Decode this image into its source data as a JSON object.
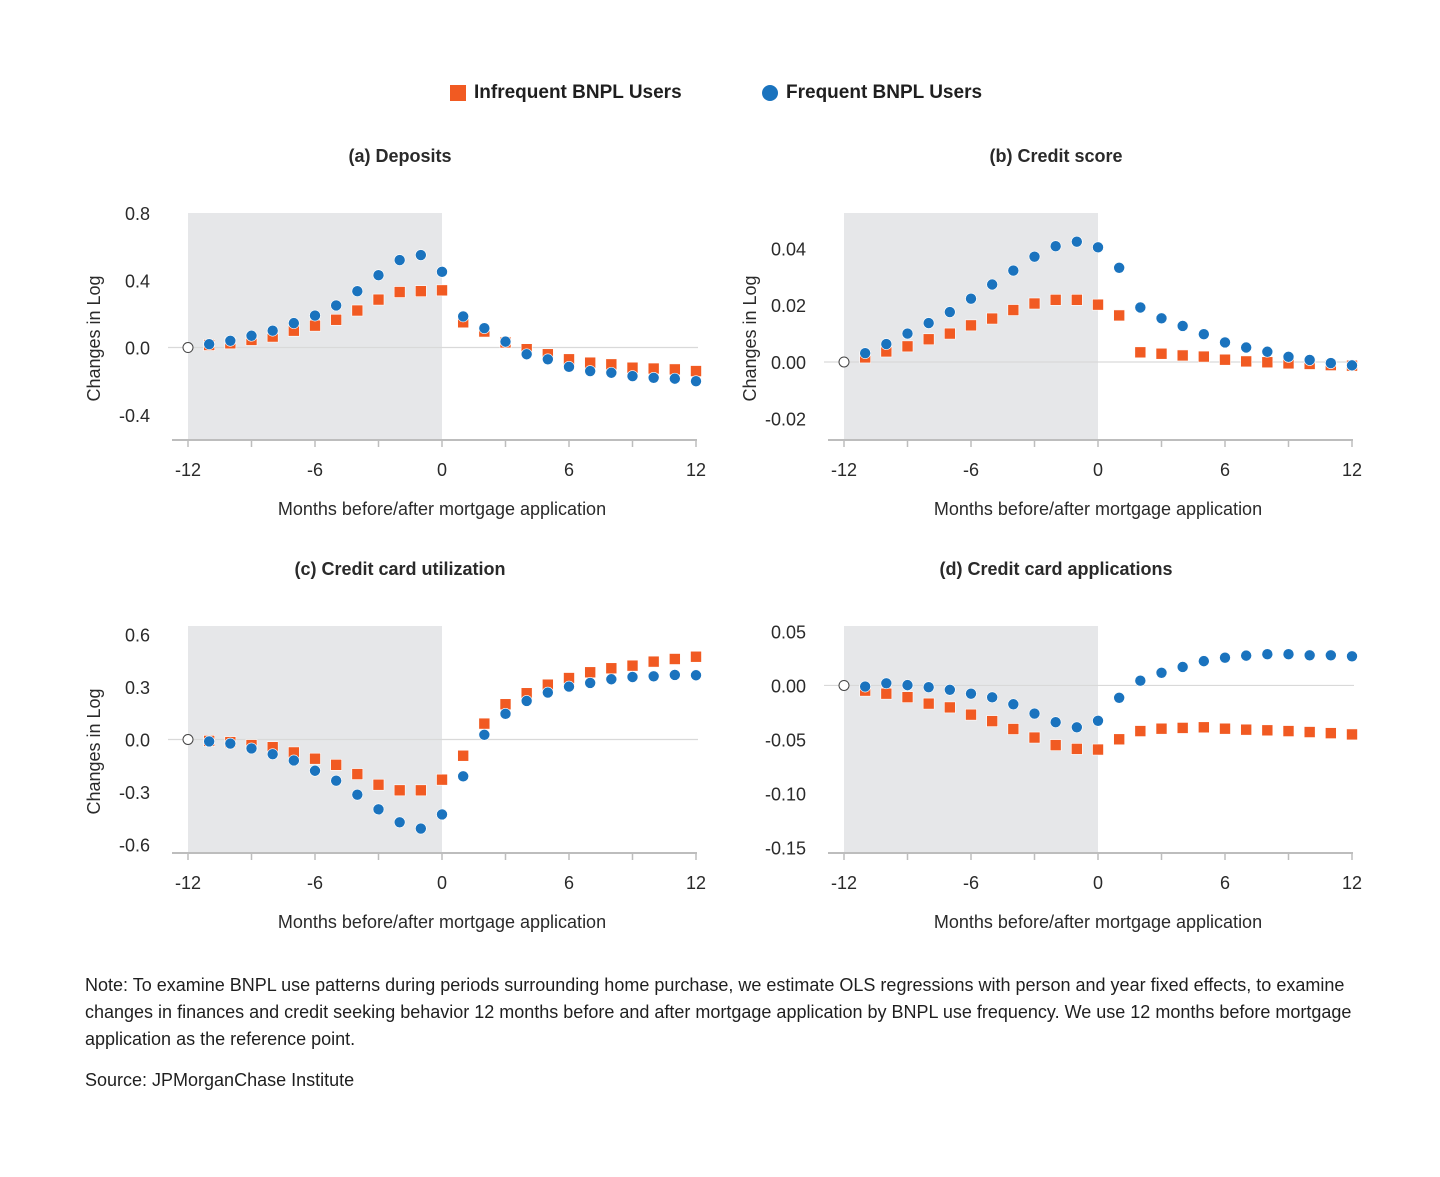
{
  "legend": {
    "items": [
      {
        "label": "Infrequent BNPL Users",
        "marker": "square",
        "color": "#F15A22"
      },
      {
        "label": "Frequent BNPL Users",
        "marker": "circle",
        "color": "#1A73BE"
      }
    ]
  },
  "colors": {
    "infrequent": "#F15A22",
    "frequent": "#1A73BE",
    "shading": "#E6E7E9",
    "axis": "#BDBDBD",
    "zero_line": "#D9D9D9",
    "text": "#222222"
  },
  "chart_data": [
    {
      "type": "scatter",
      "title": "(a) Deposits",
      "xlabel": "Months before/after mortgage application",
      "ylabel": "Changes in Log",
      "xlim": [
        -12,
        12
      ],
      "ylim": [
        -0.55,
        0.8
      ],
      "xticks": [
        -12,
        -9,
        -6,
        -3,
        0,
        3,
        6,
        9,
        12
      ],
      "xtick_labels": [
        "-12",
        "",
        "-6",
        "",
        "0",
        "",
        "6",
        "",
        "12"
      ],
      "yticks": [
        0.8,
        0.4,
        0.0,
        -0.4
      ],
      "ytick_labels": [
        "0.8",
        "0.4",
        "0.0",
        "-0.4"
      ],
      "shaded_region_x": [
        -12,
        0
      ],
      "reference_point": {
        "x": -12,
        "y": 0
      },
      "x": [
        -11,
        -10,
        -9,
        -8,
        -7,
        -6,
        -5,
        -4,
        -3,
        -2,
        -1,
        0,
        1,
        2,
        3,
        4,
        5,
        6,
        7,
        8,
        9,
        10,
        11,
        12
      ],
      "series": [
        {
          "name": "Infrequent BNPL Users",
          "values": [
            0.015,
            0.025,
            0.045,
            0.065,
            0.1,
            0.13,
            0.165,
            0.22,
            0.285,
            0.33,
            0.335,
            0.34,
            0.15,
            0.095,
            0.03,
            -0.01,
            -0.04,
            -0.07,
            -0.09,
            -0.1,
            -0.12,
            -0.125,
            -0.13,
            -0.14
          ]
        },
        {
          "name": "Frequent BNPL Users",
          "values": [
            0.02,
            0.04,
            0.07,
            0.1,
            0.145,
            0.19,
            0.25,
            0.335,
            0.43,
            0.52,
            0.55,
            0.45,
            0.185,
            0.115,
            0.035,
            -0.04,
            -0.07,
            -0.115,
            -0.14,
            -0.15,
            -0.17,
            -0.18,
            -0.185,
            -0.2
          ]
        }
      ]
    },
    {
      "type": "scatter",
      "title": "(b) Credit score",
      "xlabel": "Months before/after mortgage application",
      "ylabel": "Changes in Log",
      "xlim": [
        -12,
        12
      ],
      "ylim": [
        -0.0275,
        0.0525
      ],
      "xticks": [
        -12,
        -9,
        -6,
        -3,
        0,
        3,
        6,
        9,
        12
      ],
      "xtick_labels": [
        "-12",
        "",
        "-6",
        "",
        "0",
        "",
        "6",
        "",
        "12"
      ],
      "yticks": [
        0.04,
        0.02,
        0.0,
        -0.02
      ],
      "ytick_labels": [
        "0.04",
        "0.02",
        "0.00",
        "-0.02"
      ],
      "shaded_region_x": [
        -12,
        0
      ],
      "reference_point": {
        "x": -12,
        "y": 0
      },
      "x": [
        -11,
        -10,
        -9,
        -8,
        -7,
        -6,
        -5,
        -4,
        -3,
        -2,
        -1,
        0,
        1,
        2,
        3,
        4,
        5,
        6,
        7,
        8,
        9,
        10,
        11,
        12
      ],
      "series": [
        {
          "name": "Infrequent BNPL Users",
          "values": [
            0.0016,
            0.0037,
            0.0055,
            0.008,
            0.01,
            0.0129,
            0.0153,
            0.0183,
            0.0206,
            0.0219,
            0.0219,
            0.0202,
            0.0164,
            0.0034,
            0.0029,
            0.0023,
            0.0019,
            0.0008,
            0.0002,
            -0.0001,
            -0.0005,
            -0.0007,
            -0.0011,
            -0.0013
          ]
        },
        {
          "name": "Frequent BNPL Users",
          "values": [
            0.0031,
            0.0063,
            0.01,
            0.0137,
            0.0176,
            0.0223,
            0.0273,
            0.0322,
            0.0371,
            0.0408,
            0.0424,
            0.0404,
            0.0332,
            0.0192,
            0.0154,
            0.0127,
            0.0098,
            0.0069,
            0.0051,
            0.0036,
            0.0018,
            0.0007,
            -0.0004,
            -0.0012
          ]
        }
      ]
    },
    {
      "type": "scatter",
      "title": "(c) Credit card utilization",
      "xlabel": "Months before/after mortgage application",
      "ylabel": "Changes in Log",
      "xlim": [
        -12,
        12
      ],
      "ylim": [
        -0.65,
        0.65
      ],
      "xticks": [
        -12,
        -9,
        -6,
        -3,
        0,
        3,
        6,
        9,
        12
      ],
      "xtick_labels": [
        "-12",
        "",
        "-6",
        "",
        "0",
        "",
        "6",
        "",
        "12"
      ],
      "yticks": [
        0.6,
        0.3,
        0.0,
        -0.3,
        -0.6
      ],
      "ytick_labels": [
        "0.6",
        "0.3",
        "0.0",
        "-0.3",
        "-0.6"
      ],
      "shaded_region_x": [
        -12,
        0
      ],
      "reference_point": {
        "x": -12,
        "y": 0
      },
      "x": [
        -11,
        -10,
        -9,
        -8,
        -7,
        -6,
        -5,
        -4,
        -3,
        -2,
        -1,
        0,
        1,
        2,
        3,
        4,
        5,
        6,
        7,
        8,
        9,
        10,
        11,
        12
      ],
      "series": [
        {
          "name": "Infrequent BNPL Users",
          "values": [
            -0.008,
            -0.015,
            -0.032,
            -0.044,
            -0.074,
            -0.11,
            -0.145,
            -0.198,
            -0.259,
            -0.291,
            -0.291,
            -0.23,
            -0.093,
            0.091,
            0.202,
            0.265,
            0.314,
            0.352,
            0.385,
            0.408,
            0.423,
            0.446,
            0.461,
            0.474
          ]
        },
        {
          "name": "Frequent BNPL Users",
          "values": [
            -0.011,
            -0.023,
            -0.051,
            -0.084,
            -0.12,
            -0.179,
            -0.236,
            -0.316,
            -0.4,
            -0.474,
            -0.51,
            -0.429,
            -0.211,
            0.027,
            0.147,
            0.221,
            0.269,
            0.303,
            0.324,
            0.345,
            0.358,
            0.362,
            0.37,
            0.368
          ]
        }
      ]
    },
    {
      "type": "scatter",
      "title": "(d) Credit card applications",
      "xlabel": "Months before/after mortgage application",
      "ylabel": "",
      "xlim": [
        -12,
        12
      ],
      "ylim": [
        -0.155,
        0.055
      ],
      "xticks": [
        -12,
        -9,
        -6,
        -3,
        0,
        3,
        6,
        9,
        12
      ],
      "xtick_labels": [
        "-12",
        "",
        "-6",
        "",
        "0",
        "",
        "6",
        "",
        "12"
      ],
      "yticks": [
        0.05,
        0.0,
        -0.05,
        -0.1,
        -0.15
      ],
      "ytick_labels": [
        "0.05",
        "0.00",
        "-0.05",
        "-0.10",
        "-0.15"
      ],
      "shaded_region_x": [
        -12,
        0
      ],
      "reference_point": {
        "x": -12,
        "y": 0
      },
      "x": [
        -11,
        -10,
        -9,
        -8,
        -7,
        -6,
        -5,
        -4,
        -3,
        -2,
        -1,
        0,
        1,
        2,
        3,
        4,
        5,
        6,
        7,
        8,
        9,
        10,
        11,
        12
      ],
      "series": [
        {
          "name": "Infrequent BNPL Users",
          "values": [
            -0.0048,
            -0.0076,
            -0.0108,
            -0.0168,
            -0.0203,
            -0.027,
            -0.033,
            -0.0403,
            -0.0482,
            -0.0552,
            -0.0587,
            -0.0593,
            -0.0498,
            -0.0422,
            -0.04,
            -0.0393,
            -0.0387,
            -0.04,
            -0.0409,
            -0.0415,
            -0.0422,
            -0.0431,
            -0.0441,
            -0.0453
          ]
        },
        {
          "name": "Frequent BNPL Users",
          "values": [
            -0.001,
            0.002,
            0.0003,
            -0.0016,
            -0.004,
            -0.0076,
            -0.011,
            -0.0174,
            -0.026,
            -0.034,
            -0.0387,
            -0.0327,
            -0.0114,
            0.0044,
            0.0117,
            0.0171,
            0.0225,
            0.0257,
            0.0276,
            0.0289,
            0.0289,
            0.0279,
            0.0279,
            0.027
          ]
        }
      ]
    }
  ],
  "panel_ylabels": [
    "Changes in Log",
    "Changes in Log",
    "Changes in Log",
    ""
  ],
  "note": "Note: To examine BNPL use patterns during periods surrounding home purchase, we estimate OLS regressions with person and year fixed effects, to examine changes in finances and credit seeking behavior 12 months before and after mortgage application by BNPL use frequency. We use 12 months before mortgage application as the reference point.",
  "source": "Source: JPMorganChase Institute"
}
